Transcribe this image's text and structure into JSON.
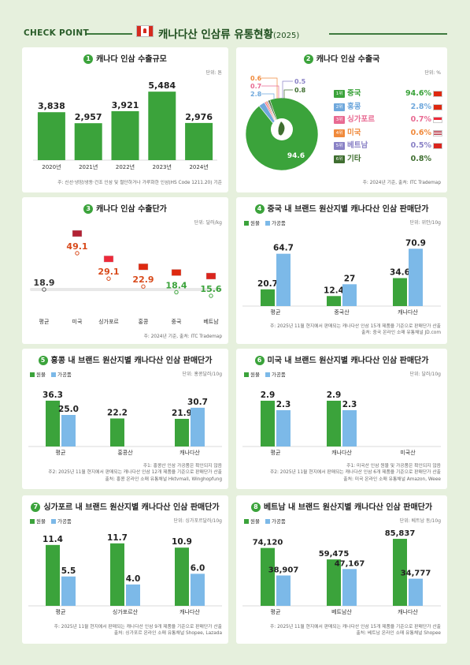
{
  "header": {
    "check_point": "CHECK POINT",
    "title_main": "캐나다산 인삼류 유통현황",
    "title_year": "(2025)"
  },
  "colors": {
    "primary": "#3ba33b",
    "secondary": "#7cb9e8",
    "background": "#e6f0dd",
    "accent_red": "#d84a1b"
  },
  "panels": {
    "p1": {
      "num": "1",
      "title": "캐나다 인삼 수출규모",
      "unit": "단위: 톤",
      "note": "주: 신선·냉장/냉동·건조 인삼 및 절단하거나 가루화한 인삼(HS Code 1211.20) 기준"
    },
    "p2": {
      "num": "2",
      "title": "캐나다 인삼 수출국",
      "unit": "단위: %",
      "note": "주: 2024년 기준, 출처: ITC Trademap",
      "list": [
        {
          "rank": "1위",
          "country": "중국",
          "pct": "94.6%",
          "color": "#3ba33b"
        },
        {
          "rank": "2위",
          "country": "홍콩",
          "pct": "2.8%",
          "color": "#6fa8dc"
        },
        {
          "rank": "3위",
          "country": "싱가포르",
          "pct": "0.7%",
          "color": "#e86a92"
        },
        {
          "rank": "4위",
          "country": "미국",
          "pct": "0.6%",
          "color": "#f08a3c"
        },
        {
          "rank": "5위",
          "country": "베트남",
          "pct": "0.5%",
          "color": "#8a82c6"
        },
        {
          "rank": "6위",
          "country": "기타",
          "pct": "0.8%",
          "color": "#3f6e30"
        }
      ]
    },
    "p3": {
      "num": "3",
      "title": "캐나다 인삼 수출단가",
      "unit": "단위: 달러/kg",
      "note": "주: 2024년 기준, 출처: ITC Trademap"
    },
    "p4": {
      "num": "4",
      "title": "중국 내 브랜드 원산지별 캐나다산 인삼 판매단가",
      "unit": "단위: 위안/10g",
      "note_lines": [
        "주: 2025년 11월 현지에서 판매되는 캐나다산 인삼 15개 제품을 기준으로 판매단가 산출",
        "출처: 중국 온라인 소매 유통채널 JD.com"
      ]
    },
    "p5": {
      "num": "5",
      "title": "홍콩 내 브랜드 원산지별 캐나다산 인삼 판매단가",
      "unit": "단위: 홍콩달러/10g",
      "note_lines": [
        "주1: 홍콩산 인삼 가공품은 확인되지 않음",
        "주2: 2025년 11월 현지에서 판매되는 캐나다산 인삼 12개 제품을 기준으로 판매단가 산출",
        "출처: 홍콩 온라인 소매 유통채널 Hktvmall, Winghopfung"
      ]
    },
    "p6": {
      "num": "6",
      "title": "미국 내 브랜드 원산지별 캐나다산 인삼 판매단가",
      "unit": "단위: 달러/10g",
      "note_lines": [
        "주1: 미국산 인삼 원물 및 가공품은 확인되지 않음",
        "주2: 2025년 11월 현지에서 판매되는 캐나다산 인삼 6개 제품을 기준으로 판매단가 산출",
        "출처: 미국 온라인 소매 유통채널 Amazon, Weee"
      ]
    },
    "p7": {
      "num": "7",
      "title": "싱가포르 내 브랜드 원산지별 캐나다산 인삼 판매단가",
      "unit": "단위: 싱가포르달러/10g",
      "note_lines": [
        "주: 2025년 11월 현지에서 판매되는 캐나다산 인삼 9개 제품을 기준으로 판매단가 산출",
        "출처: 싱가포르 온라인 소매 유통채널 Shopee, Lazada"
      ]
    },
    "p8": {
      "num": "8",
      "title": "베트남 내 브랜드 원산지별 캐나다산 인삼 판매단가",
      "unit": "단위: 베트남 동/10g",
      "note_lines": [
        "주: 2025년 11월 현지에서 판매되는 캐나다산 인삼 15개 제품을 기준으로 판매단가 산출",
        "출처: 베트남 온라인 소매 유통채널 Shopee"
      ]
    }
  },
  "legend": {
    "raw": "원물",
    "processed": "가공품"
  },
  "chart_data": [
    {
      "id": "p1",
      "type": "bar",
      "categories": [
        "2020년",
        "2021년",
        "2022년",
        "2023년",
        "2024년"
      ],
      "values": [
        3838,
        2957,
        3921,
        5484,
        2976
      ],
      "value_labels": [
        "3,838",
        "2,957",
        "3,921",
        "5,484",
        "2,976"
      ],
      "ylim": [
        0,
        6000
      ]
    },
    {
      "id": "p2",
      "type": "pie",
      "labels": [
        "중국",
        "홍콩",
        "싱가포르",
        "미국",
        "베트남",
        "기타"
      ],
      "values": [
        94.6,
        2.8,
        0.7,
        0.6,
        0.5,
        0.8
      ],
      "value_labels": [
        "94.6",
        "2.8",
        "0.7",
        "0.6",
        "0.5",
        "0.8"
      ]
    },
    {
      "id": "p3",
      "type": "scatter",
      "categories": [
        "평균",
        "미국",
        "싱가포르",
        "홍콩",
        "중국",
        "베트남"
      ],
      "values": [
        18.9,
        49.1,
        29.1,
        22.9,
        18.4,
        15.6
      ],
      "value_labels": [
        "18.9",
        "49.1",
        "29.1",
        "22.9",
        "18.4",
        "15.6"
      ],
      "baseline": 18.9
    },
    {
      "id": "p4",
      "type": "bar",
      "categories": [
        "평균",
        "중국산",
        "캐나다산"
      ],
      "series": [
        {
          "name": "원물",
          "values": [
            20.7,
            12.4,
            34.6
          ],
          "labels": [
            "20.7",
            "12.4",
            "34.6"
          ]
        },
        {
          "name": "가공품",
          "values": [
            64.7,
            27,
            70.9
          ],
          "labels": [
            "64.7",
            "27",
            "70.9"
          ]
        }
      ],
      "ylim": [
        0,
        80
      ]
    },
    {
      "id": "p5",
      "type": "bar",
      "categories": [
        "평균",
        "홍콩산",
        "캐나다산"
      ],
      "series": [
        {
          "name": "원물",
          "values": [
            36.3,
            22.2,
            21.9
          ],
          "labels": [
            "36.3",
            "22.2",
            "21.9"
          ]
        },
        {
          "name": "가공품",
          "values": [
            25.0,
            null,
            30.7
          ],
          "labels": [
            "25.0",
            "",
            "30.7"
          ]
        }
      ],
      "ylim": [
        0,
        40
      ]
    },
    {
      "id": "p6",
      "type": "bar",
      "categories": [
        "평균",
        "캐나다산",
        "미국산"
      ],
      "series": [
        {
          "name": "원물",
          "values": [
            2.9,
            2.9,
            null
          ],
          "labels": [
            "2.9",
            "2.9",
            ""
          ]
        },
        {
          "name": "가공품",
          "values": [
            2.3,
            2.3,
            null
          ],
          "labels": [
            "2.3",
            "2.3",
            ""
          ]
        }
      ],
      "ylim": [
        0,
        3.2
      ]
    },
    {
      "id": "p7",
      "type": "bar",
      "categories": [
        "평균",
        "싱가포르산",
        "캐나다산"
      ],
      "series": [
        {
          "name": "원물",
          "values": [
            11.4,
            11.7,
            10.9
          ],
          "labels": [
            "11.4",
            "11.7",
            "10.9"
          ]
        },
        {
          "name": "가공품",
          "values": [
            5.5,
            4.0,
            6.0
          ],
          "labels": [
            "5.5",
            "4.0",
            "6.0"
          ]
        }
      ],
      "ylim": [
        0,
        13
      ]
    },
    {
      "id": "p8",
      "type": "bar",
      "categories": [
        "평균",
        "베트남산",
        "캐나다산"
      ],
      "series": [
        {
          "name": "원물",
          "values": [
            74120,
            59475,
            85837
          ],
          "labels": [
            "74,120",
            "59,475",
            "85,837"
          ]
        },
        {
          "name": "가공품",
          "values": [
            38907,
            47167,
            34777
          ],
          "labels": [
            "38,907",
            "47,167",
            "34,777"
          ]
        }
      ],
      "ylim": [
        0,
        95000
      ]
    }
  ]
}
